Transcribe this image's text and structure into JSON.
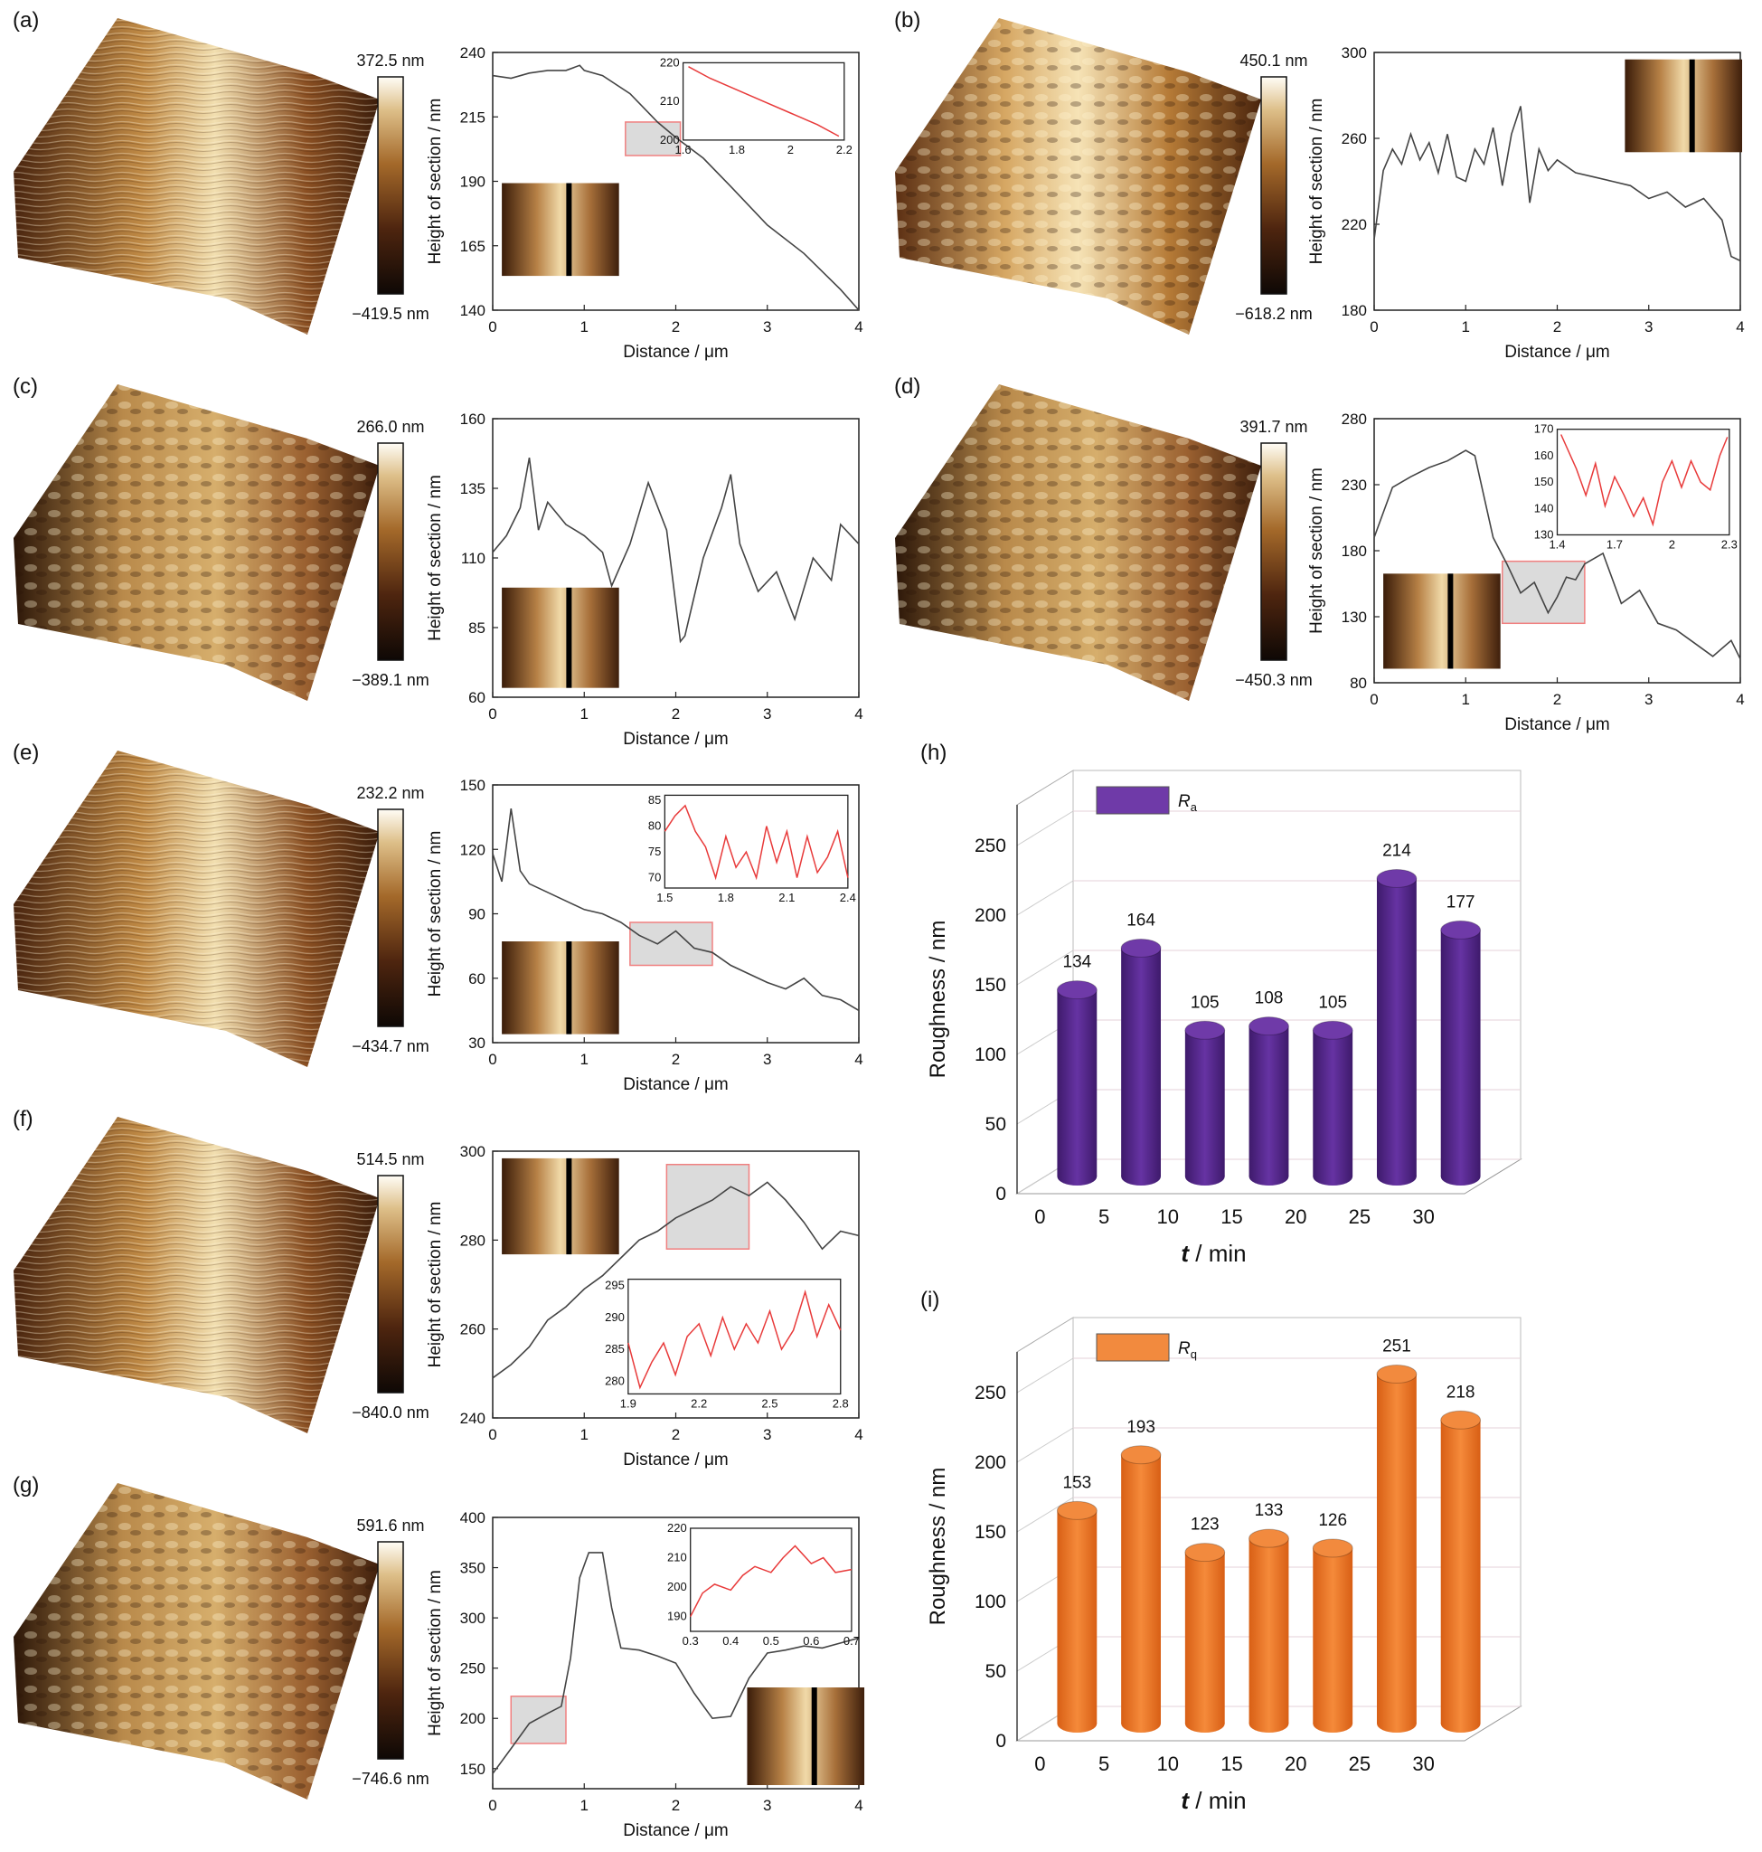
{
  "figure": {
    "panels": [
      {
        "id": "a",
        "label": "(a)",
        "scale_max": "372.5 nm",
        "scale_min": "−419.5 nm"
      },
      {
        "id": "b",
        "label": "(b)",
        "scale_max": "450.1 nm",
        "scale_min": "−618.2 nm"
      },
      {
        "id": "c",
        "label": "(c)",
        "scale_max": "266.0 nm",
        "scale_min": "−389.1 nm"
      },
      {
        "id": "d",
        "label": "(d)",
        "scale_max": "391.7 nm",
        "scale_min": "−450.3 nm"
      },
      {
        "id": "e",
        "label": "(e)",
        "scale_max": "232.2 nm",
        "scale_min": "−434.7 nm"
      },
      {
        "id": "f",
        "label": "(f)",
        "scale_max": "514.5 nm",
        "scale_min": "−840.0 nm"
      },
      {
        "id": "g",
        "label": "(g)",
        "scale_max": "591.6 nm",
        "scale_min": "−746.6 nm"
      }
    ],
    "profile_xlabel": "Distance / μm",
    "profile_ylabel": "Height of section / nm",
    "roughness_ylabel": "Roughness / nm",
    "roughness_xlabel": "t / min",
    "colors": {
      "profile_line": "#444444",
      "inset_line": "#e83a3a",
      "highlight_fill": "#d2d2d2",
      "highlight_stroke": "#f08080",
      "ra_bar": "#5b2a8f",
      "rq_bar": "#f07a2b"
    }
  },
  "chart_data": [
    {
      "type": "line",
      "panel": "a",
      "xlabel": "Distance / μm",
      "ylabel": "Height of section / nm",
      "xlim": [
        0,
        4
      ],
      "ylim": [
        140,
        240
      ],
      "xticks": [
        0,
        1,
        2,
        3,
        4
      ],
      "yticks": [
        140,
        165,
        190,
        215,
        240
      ],
      "x": [
        0,
        0.2,
        0.4,
        0.6,
        0.8,
        0.95,
        1.0,
        1.2,
        1.5,
        1.8,
        2.0,
        2.3,
        2.6,
        3.0,
        3.4,
        3.8,
        4.0
      ],
      "y": [
        231,
        230,
        232,
        233,
        233,
        235,
        233,
        231,
        224,
        213,
        207,
        199,
        188,
        173,
        162,
        148,
        140
      ],
      "highlight": {
        "x": [
          1.45,
          2.05
        ],
        "y": [
          200,
          213
        ]
      },
      "inset": {
        "xlim": [
          1.6,
          2.2
        ],
        "ylim": [
          200,
          220
        ],
        "xticks": [
          1.6,
          1.8,
          2.0,
          2.2
        ],
        "yticks": [
          200,
          210,
          220
        ],
        "x": [
          1.62,
          1.7,
          1.8,
          1.9,
          2.0,
          2.1,
          2.18
        ],
        "y": [
          219,
          216,
          213,
          210,
          207,
          204,
          201
        ]
      }
    },
    {
      "type": "line",
      "panel": "b",
      "xlabel": "Distance / μm",
      "ylabel": "Height of section / nm",
      "xlim": [
        0,
        4
      ],
      "ylim": [
        180,
        300
      ],
      "xticks": [
        0,
        1,
        2,
        3,
        4
      ],
      "yticks": [
        180,
        220,
        260,
        300
      ],
      "x": [
        0,
        0.1,
        0.2,
        0.3,
        0.4,
        0.5,
        0.6,
        0.7,
        0.8,
        0.9,
        1.0,
        1.1,
        1.2,
        1.3,
        1.4,
        1.5,
        1.6,
        1.7,
        1.8,
        1.9,
        2.0,
        2.2,
        2.4,
        2.6,
        2.8,
        3.0,
        3.2,
        3.4,
        3.6,
        3.8,
        3.9,
        4.0
      ],
      "y": [
        213,
        245,
        255,
        248,
        262,
        250,
        258,
        244,
        262,
        242,
        240,
        255,
        248,
        265,
        238,
        262,
        275,
        230,
        255,
        245,
        250,
        244,
        242,
        240,
        238,
        232,
        235,
        228,
        232,
        222,
        205,
        203
      ]
    },
    {
      "type": "line",
      "panel": "c",
      "xlabel": "Distance / μm",
      "ylabel": "Height of section / nm",
      "xlim": [
        0,
        4
      ],
      "ylim": [
        60,
        160
      ],
      "xticks": [
        0,
        1,
        2,
        3,
        4
      ],
      "yticks": [
        60,
        85,
        110,
        135,
        160
      ],
      "x": [
        0,
        0.15,
        0.3,
        0.4,
        0.5,
        0.6,
        0.8,
        1.0,
        1.2,
        1.3,
        1.5,
        1.7,
        1.9,
        2.05,
        2.1,
        2.3,
        2.5,
        2.6,
        2.7,
        2.9,
        3.1,
        3.3,
        3.5,
        3.7,
        3.8,
        4.0
      ],
      "y": [
        112,
        118,
        128,
        146,
        120,
        130,
        122,
        118,
        112,
        100,
        115,
        137,
        120,
        80,
        82,
        110,
        128,
        140,
        115,
        98,
        105,
        88,
        110,
        102,
        122,
        115
      ]
    },
    {
      "type": "line",
      "panel": "d",
      "xlabel": "Distance / μm",
      "ylabel": "Height of section / nm",
      "xlim": [
        0,
        4
      ],
      "ylim": [
        80,
        280
      ],
      "xticks": [
        0,
        1,
        2,
        3,
        4
      ],
      "yticks": [
        80,
        130,
        180,
        230,
        280
      ],
      "x": [
        0,
        0.2,
        0.4,
        0.6,
        0.8,
        1.0,
        1.1,
        1.3,
        1.45,
        1.6,
        1.75,
        1.9,
        2.0,
        2.1,
        2.2,
        2.3,
        2.5,
        2.7,
        2.9,
        3.1,
        3.3,
        3.5,
        3.7,
        3.9,
        4.0
      ],
      "y": [
        190,
        228,
        236,
        243,
        248,
        256,
        252,
        190,
        170,
        148,
        156,
        133,
        145,
        160,
        158,
        170,
        178,
        140,
        150,
        125,
        120,
        110,
        100,
        112,
        98
      ],
      "highlight": {
        "x": [
          1.4,
          2.3
        ],
        "y": [
          125,
          172
        ]
      },
      "inset": {
        "xlim": [
          1.4,
          2.3
        ],
        "ylim": [
          130,
          170
        ],
        "xticks": [
          1.4,
          1.7,
          2.0,
          2.3
        ],
        "yticks": [
          130,
          140,
          150,
          160,
          170
        ],
        "x": [
          1.42,
          1.5,
          1.55,
          1.6,
          1.65,
          1.7,
          1.75,
          1.8,
          1.85,
          1.9,
          1.95,
          2.0,
          2.05,
          2.1,
          2.15,
          2.2,
          2.25,
          2.29
        ],
        "y": [
          168,
          155,
          145,
          157,
          141,
          152,
          145,
          137,
          144,
          134,
          150,
          158,
          148,
          158,
          150,
          147,
          160,
          167
        ]
      }
    },
    {
      "type": "line",
      "panel": "e",
      "xlabel": "Distance / μm",
      "ylabel": "Height of section / nm",
      "xlim": [
        0,
        4
      ],
      "ylim": [
        30,
        150
      ],
      "xticks": [
        0,
        1,
        2,
        3,
        4
      ],
      "yticks": [
        30,
        60,
        90,
        120,
        150
      ],
      "x": [
        0,
        0.1,
        0.2,
        0.3,
        0.4,
        0.6,
        0.8,
        1.0,
        1.2,
        1.4,
        1.6,
        1.8,
        2.0,
        2.2,
        2.4,
        2.6,
        2.8,
        3.0,
        3.2,
        3.4,
        3.6,
        3.8,
        4.0
      ],
      "y": [
        118,
        105,
        139,
        110,
        104,
        100,
        96,
        92,
        90,
        86,
        80,
        76,
        82,
        74,
        72,
        66,
        62,
        58,
        55,
        60,
        52,
        50,
        45
      ],
      "highlight": {
        "x": [
          1.5,
          2.4
        ],
        "y": [
          66,
          86
        ]
      },
      "inset": {
        "xlim": [
          1.5,
          2.4
        ],
        "ylim": [
          68,
          86
        ],
        "xticks": [
          1.5,
          1.8,
          2.1,
          2.4
        ],
        "yticks": [
          70,
          75,
          80,
          85
        ],
        "x": [
          1.5,
          1.55,
          1.6,
          1.65,
          1.7,
          1.75,
          1.8,
          1.85,
          1.9,
          1.95,
          2.0,
          2.05,
          2.1,
          2.15,
          2.2,
          2.25,
          2.3,
          2.35,
          2.4
        ],
        "y": [
          79,
          82,
          84,
          79,
          76,
          70,
          78,
          72,
          75,
          70,
          80,
          73,
          79,
          70,
          78,
          71,
          74,
          79,
          70
        ]
      }
    },
    {
      "type": "line",
      "panel": "f",
      "xlabel": "Distance / μm",
      "ylabel": "Height of section / nm",
      "xlim": [
        0,
        4
      ],
      "ylim": [
        240,
        300
      ],
      "xticks": [
        0,
        1,
        2,
        3,
        4
      ],
      "yticks": [
        240,
        260,
        280,
        300
      ],
      "x": [
        0,
        0.2,
        0.4,
        0.6,
        0.8,
        1.0,
        1.2,
        1.4,
        1.6,
        1.8,
        2.0,
        2.2,
        2.4,
        2.6,
        2.8,
        3.0,
        3.2,
        3.4,
        3.6,
        3.8,
        4.0
      ],
      "y": [
        249,
        252,
        256,
        262,
        265,
        269,
        272,
        276,
        280,
        282,
        285,
        287,
        289,
        292,
        290,
        293,
        289,
        284,
        278,
        282,
        281
      ],
      "highlight": {
        "x": [
          1.9,
          2.8
        ],
        "y": [
          278,
          297
        ]
      },
      "inset": {
        "xlim": [
          1.9,
          2.8
        ],
        "ylim": [
          278,
          296
        ],
        "xticks": [
          1.9,
          2.2,
          2.5,
          2.8
        ],
        "yticks": [
          280,
          285,
          290,
          295
        ],
        "x": [
          1.9,
          1.95,
          2.0,
          2.05,
          2.1,
          2.15,
          2.2,
          2.25,
          2.3,
          2.35,
          2.4,
          2.45,
          2.5,
          2.55,
          2.6,
          2.65,
          2.7,
          2.75,
          2.8
        ],
        "y": [
          286,
          279,
          283,
          286,
          281,
          287,
          289,
          284,
          290,
          285,
          289,
          286,
          291,
          285,
          288,
          294,
          287,
          292,
          288
        ]
      }
    },
    {
      "type": "line",
      "panel": "g",
      "xlabel": "Distance / μm",
      "ylabel": "Height of section / nm",
      "xlim": [
        0,
        4
      ],
      "ylim": [
        130,
        400
      ],
      "xticks": [
        0,
        1,
        2,
        3,
        4
      ],
      "yticks": [
        150,
        200,
        250,
        300,
        350,
        400
      ],
      "x": [
        0,
        0.2,
        0.4,
        0.6,
        0.75,
        0.85,
        0.95,
        1.05,
        1.2,
        1.3,
        1.4,
        1.6,
        1.8,
        2.0,
        2.2,
        2.4,
        2.6,
        2.8,
        3.0,
        3.2,
        3.4,
        3.6,
        3.8,
        4.0
      ],
      "y": [
        145,
        170,
        195,
        205,
        212,
        260,
        340,
        365,
        365,
        310,
        270,
        268,
        262,
        255,
        225,
        200,
        202,
        240,
        265,
        268,
        272,
        270,
        275,
        280
      ],
      "highlight": {
        "x": [
          0.2,
          0.8
        ],
        "y": [
          175,
          222
        ]
      },
      "inset": {
        "xlim": [
          0.3,
          0.7
        ],
        "ylim": [
          185,
          220
        ],
        "xticks": [
          0.3,
          0.4,
          0.5,
          0.6,
          0.7
        ],
        "yticks": [
          190,
          200,
          210,
          220
        ],
        "x": [
          0.3,
          0.33,
          0.36,
          0.4,
          0.43,
          0.46,
          0.5,
          0.53,
          0.56,
          0.6,
          0.63,
          0.66,
          0.7
        ],
        "y": [
          190,
          198,
          201,
          199,
          204,
          207,
          205,
          210,
          214,
          208,
          210,
          205,
          206
        ]
      }
    },
    {
      "type": "bar",
      "panel": "h",
      "series": [
        {
          "name": "R_a",
          "values": [
            134,
            164,
            105,
            108,
            105,
            214,
            177
          ]
        }
      ],
      "categories": [
        "0",
        "5",
        "10",
        "15",
        "20",
        "25",
        "30"
      ],
      "legend": {
        "main": "R",
        "sub": "a"
      },
      "xlabel": "t / min",
      "ylabel": "Roughness / nm",
      "ylim": [
        0,
        250
      ],
      "yticks": [
        0,
        50,
        100,
        150,
        200,
        250
      ]
    },
    {
      "type": "bar",
      "panel": "i",
      "series": [
        {
          "name": "R_q",
          "values": [
            153,
            193,
            123,
            133,
            126,
            251,
            218
          ]
        }
      ],
      "categories": [
        "0",
        "5",
        "10",
        "15",
        "20",
        "25",
        "30"
      ],
      "legend": {
        "main": "R",
        "sub": "q"
      },
      "xlabel": "t / min",
      "ylabel": "Roughness / nm",
      "ylim": [
        0,
        250
      ],
      "yticks": [
        0,
        50,
        100,
        150,
        200,
        250
      ]
    }
  ]
}
